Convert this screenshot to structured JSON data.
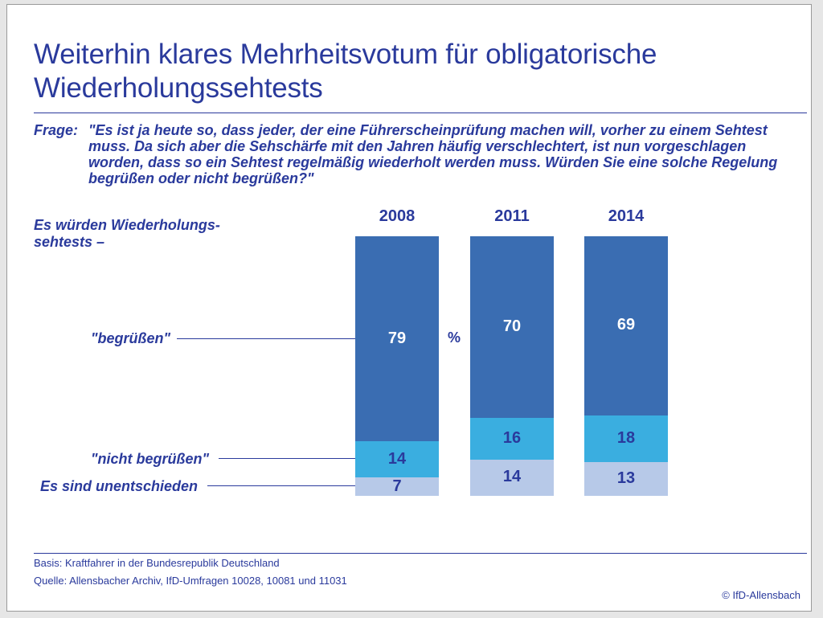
{
  "title": "Weiterhin klares Mehrheitsvotum für obligatorische Wiederholungssehtests",
  "question": {
    "label": "Frage:",
    "text": "\"Es ist ja heute so, dass jeder, der eine Führerscheinprüfung machen will, vorher zu einem Sehtest muss. Da sich aber die Sehschärfe mit den Jahren häufig verschlechtert, ist nun vorgeschlagen worden, dass so ein Sehtest regelmäßig wiederholt werden muss. Würden Sie eine solche Regelung begrüßen oder nicht begrüßen?\""
  },
  "subhead": "Es würden Wiederholungs- sehtests –",
  "percent_sign": "%",
  "footer": {
    "basis": "Basis: Kraftfahrer in der Bundesrepublik Deutschland",
    "quelle": "Quelle: Allensbacher Archiv, IfD-Umfragen 10028, 10081 und 11031",
    "copyright": "© IfD-Allensbach"
  },
  "colors": {
    "accent": "#2a3a9c",
    "begruessen": "#3a6db2",
    "nicht_begruessen": "#3aaee0",
    "unentschieden": "#b7c9e8"
  },
  "chart_data": {
    "type": "bar",
    "stacked": true,
    "unit": "%",
    "categories": [
      "2008",
      "2011",
      "2014"
    ],
    "series": [
      {
        "name": "Es sind unentschieden",
        "values": [
          7,
          14,
          13
        ]
      },
      {
        "name": "\"nicht begrüßen\"",
        "values": [
          14,
          16,
          18
        ]
      },
      {
        "name": "\"begrüßen\"",
        "values": [
          79,
          70,
          69
        ]
      }
    ],
    "ylim": [
      0,
      100
    ]
  }
}
